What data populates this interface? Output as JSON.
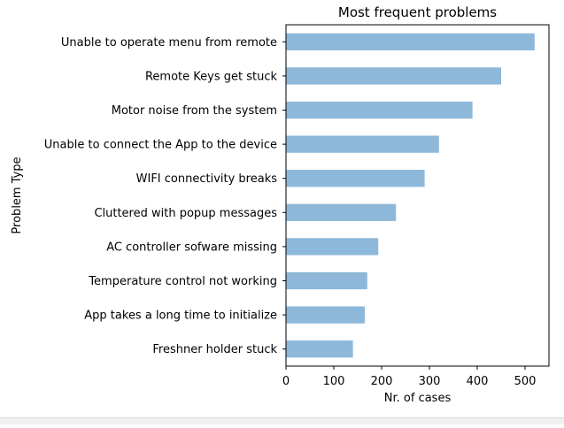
{
  "chart_data": {
    "type": "bar",
    "orientation": "horizontal",
    "title": "Most frequent problems",
    "xlabel": "Nr. of cases",
    "ylabel": "Problem Type",
    "categories": [
      "Unable to operate menu from remote",
      "Remote Keys get stuck ",
      "Motor noise from the system ",
      "Unable to connect the App to the device",
      "WIFI connectivity breaks ",
      "Cluttered with popup messages",
      "AC controller sofware missing",
      "Temperature control not working",
      "App takes a long time to initialize",
      "Freshner holder stuck "
    ],
    "values": [
      520,
      450,
      390,
      320,
      290,
      230,
      193,
      170,
      165,
      140
    ],
    "xlim": [
      0,
      550
    ],
    "xticks": [
      0,
      100,
      200,
      300,
      400,
      500
    ],
    "grid": false,
    "bar_color": "#8db8da"
  }
}
